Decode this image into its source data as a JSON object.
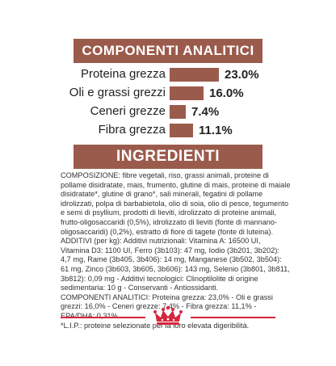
{
  "analytic": {
    "title": "COMPONENTI ANALITICI",
    "rows": [
      {
        "label": "Proteina grezza",
        "value": "23.0%",
        "percent": 23.0
      },
      {
        "label": "Oli e grassi grezzi",
        "value": "16.0%",
        "percent": 16.0
      },
      {
        "label": "Ceneri grezze",
        "value": "7.4%",
        "percent": 7.4
      },
      {
        "label": "Fibra grezza",
        "value": "11.1%",
        "percent": 11.1
      }
    ]
  },
  "ingredients": {
    "title": "INGREDIENTI",
    "paragraphs": [
      "COMPOSIZIONE: fibre vegetali, riso, grassi animali, proteine di pollame disidratate, mais, frumento, glutine di mais, proteine di maiale disidratate*, glutine di grano*, sali minerali, fegatini di pollame idrolizzati, polpa di barbabietola, olio di soia, olio di pesce, tegumento e semi di psyllium, prodotti di lieviti, idrolizzato di proteine animali, frutto-oligosaccaridi (0,5%), idrolizzato di lieviti (fonte di mannano-oligosaccaridi) (0,2%), estratto di fiore di tagete (fonte di luteina).",
      "ADDITIVI (per kg): Additivi nutrizionali: Vitamina A: 16500 UI, Vitamina D3: 1100 UI, Ferro (3b103): 47 mg, Iodio (3b201, 3b202): 4,7 mg, Rame (3b405, 3b406): 14 mg, Manganese (3b502, 3b504): 61 mg, Zinco (3b603, 3b605, 3b606): 143 mg, Selenio (3b801, 3b811, 3b812): 0,09 mg - Additivi tecnologici: Clinoptilolite di origine sedimentaria: 10 g - Conservanti - Antiossidanti.",
      "COMPONENTI ANALITICI: Proteina grezza: 23,0% - Oli e grassi grezzi: 16,0% - Ceneri grezze: 7,4% - Fibra grezza: 11,1% - EPA/DHA: 0,31%.",
      "*L.I.P.: proteine selezionate per la loro elevata digeribilità."
    ]
  },
  "colors": {
    "accent": "#9b5b4c",
    "footer_line": "#d6263d",
    "logo": "#d6263d"
  },
  "logo": {
    "name": "royal-canin-crown-logo"
  }
}
